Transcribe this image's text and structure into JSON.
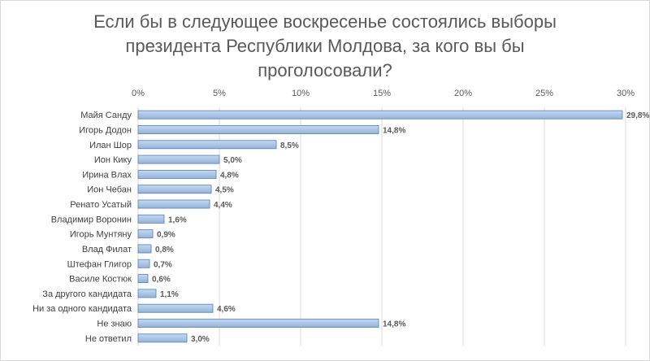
{
  "chart_data": {
    "type": "bar",
    "orientation": "horizontal",
    "title": "Если бы в следующее воскресенье состоялись выборы президента Республики Молдова, за кого вы бы проголосовали?",
    "title_lines": [
      "Если бы в следующее воскресенье состоялись выборы",
      "президента Республики Молдова, за кого вы бы",
      "проголосовали?"
    ],
    "categories": [
      "Майя Санду",
      "Игорь Додон",
      "Илан Шор",
      "Ион Кику",
      "Ирина Влах",
      "Ион Чебан",
      "Ренато Усатый",
      "Владимир Воронин",
      "Игорь Мунтяну",
      "Влад Филат",
      "Штефан Глигор",
      "Василе Костюк",
      "За другого кандидата",
      "Ни за одного кандидата",
      "Не знаю",
      "Не ответил"
    ],
    "values": [
      29.8,
      14.8,
      8.5,
      5.0,
      4.8,
      4.5,
      4.4,
      1.6,
      0.9,
      0.8,
      0.7,
      0.6,
      1.1,
      4.6,
      14.8,
      3.0
    ],
    "value_labels": [
      "29,8%",
      "14,8%",
      "8,5%",
      "5,0%",
      "4,8%",
      "4,5%",
      "4,4%",
      "1,6%",
      "0,9%",
      "0,8%",
      "0,7%",
      "0,6%",
      "1,1%",
      "4,6%",
      "14,8%",
      "3,0%"
    ],
    "xlim": [
      0,
      30
    ],
    "xticks": [
      0,
      5,
      10,
      15,
      20,
      25,
      30
    ],
    "xtick_labels": [
      "0%",
      "5%",
      "10%",
      "15%",
      "20%",
      "25%",
      "30%"
    ],
    "x_axis_position": "top",
    "grid": true,
    "legend": "none",
    "colors": {
      "bar_fill_top": "#c5d9f1",
      "bar_fill_bottom": "#95b3d7",
      "bar_stroke": "#4f81bd",
      "grid": "#d9d9d9",
      "text": "#595959"
    }
  }
}
